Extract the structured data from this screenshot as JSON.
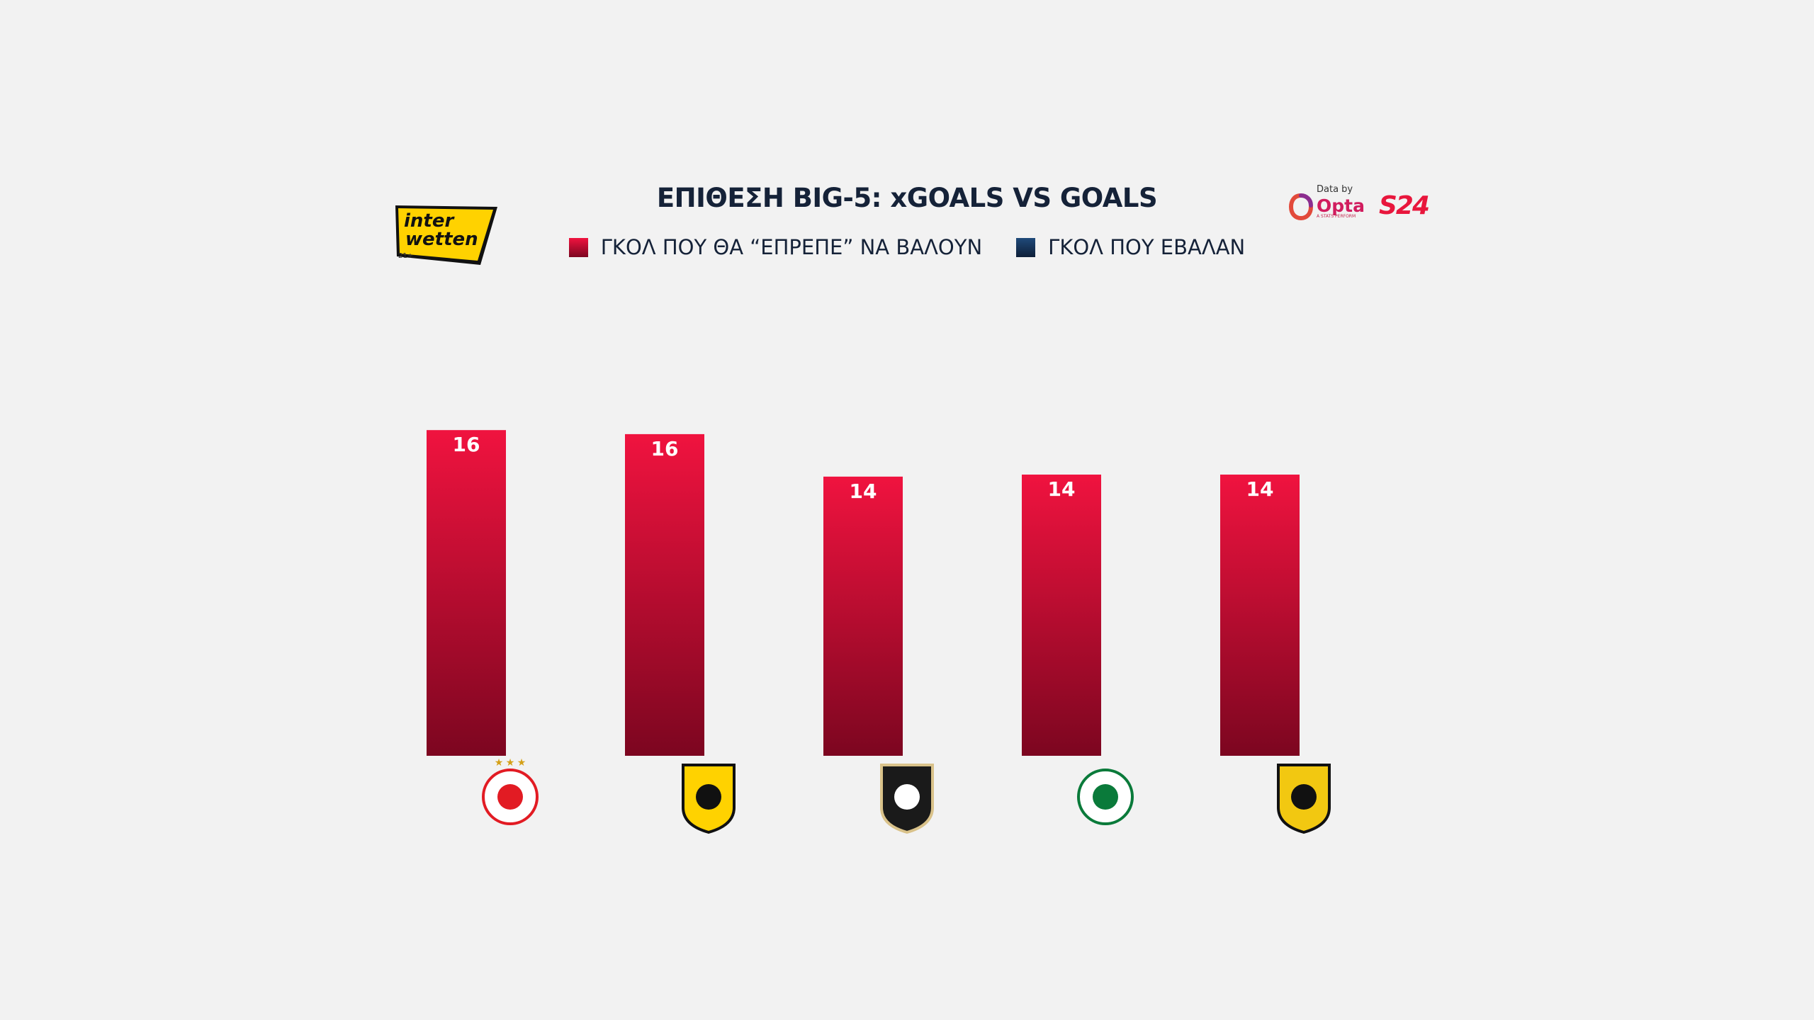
{
  "colors": {
    "background": "#f2f2f2",
    "bar_top": "#f0133f",
    "bar_bottom": "#7c0620",
    "title": "#152238",
    "legend_goals": "#1f4a7a"
  },
  "header": {
    "title": "ΕΠΙΘΕΣΗ BIG-5: xGOALS VS GOALS"
  },
  "legend": {
    "xgoals": "ΓΚΟΛ ΠΟΥ ΘΑ “ΕΠΡΕΠΕ” ΝΑ ΒΑΛΟΥΝ",
    "goals": "ΓΚΟΛ ΠΟΥ ΕΒΑΛΑΝ"
  },
  "sponsor": {
    "name_line1": "inter",
    "name_line2": "wetten",
    "age": "21+"
  },
  "brand": {
    "data_by": "Data by",
    "opta": "Opta",
    "opta_sub": "A STATS PERFORM",
    "site": "S24"
  },
  "chart_data": {
    "type": "bar",
    "categories": [
      "ΟΛΥΜΠΙΑΚΟΣ",
      "ΑΕΚ",
      "ΠΑΟΚ",
      "ΠΑΝΑΘΗΝΑΪΚΟΣ",
      "ΑΡΗΣ"
    ],
    "series": [
      {
        "name": "ΓΚΟΛ ΠΟΥ ΘΑ “ΕΠΡΕΠΕ” ΝΑ ΒΑΛΟΥΝ",
        "values": [
          16.1,
          15.9,
          13.8,
          13.9,
          13.9
        ],
        "labels": [
          "16",
          "16",
          "14",
          "14",
          "14"
        ]
      }
    ],
    "ylim": [
      0,
      25
    ],
    "grid": false,
    "legend_position": "top",
    "icons": [
      "olympiacos-crest-icon",
      "aek-crest-icon",
      "paok-crest-icon",
      "panathinaikos-crest-icon",
      "aris-crest-icon"
    ]
  }
}
